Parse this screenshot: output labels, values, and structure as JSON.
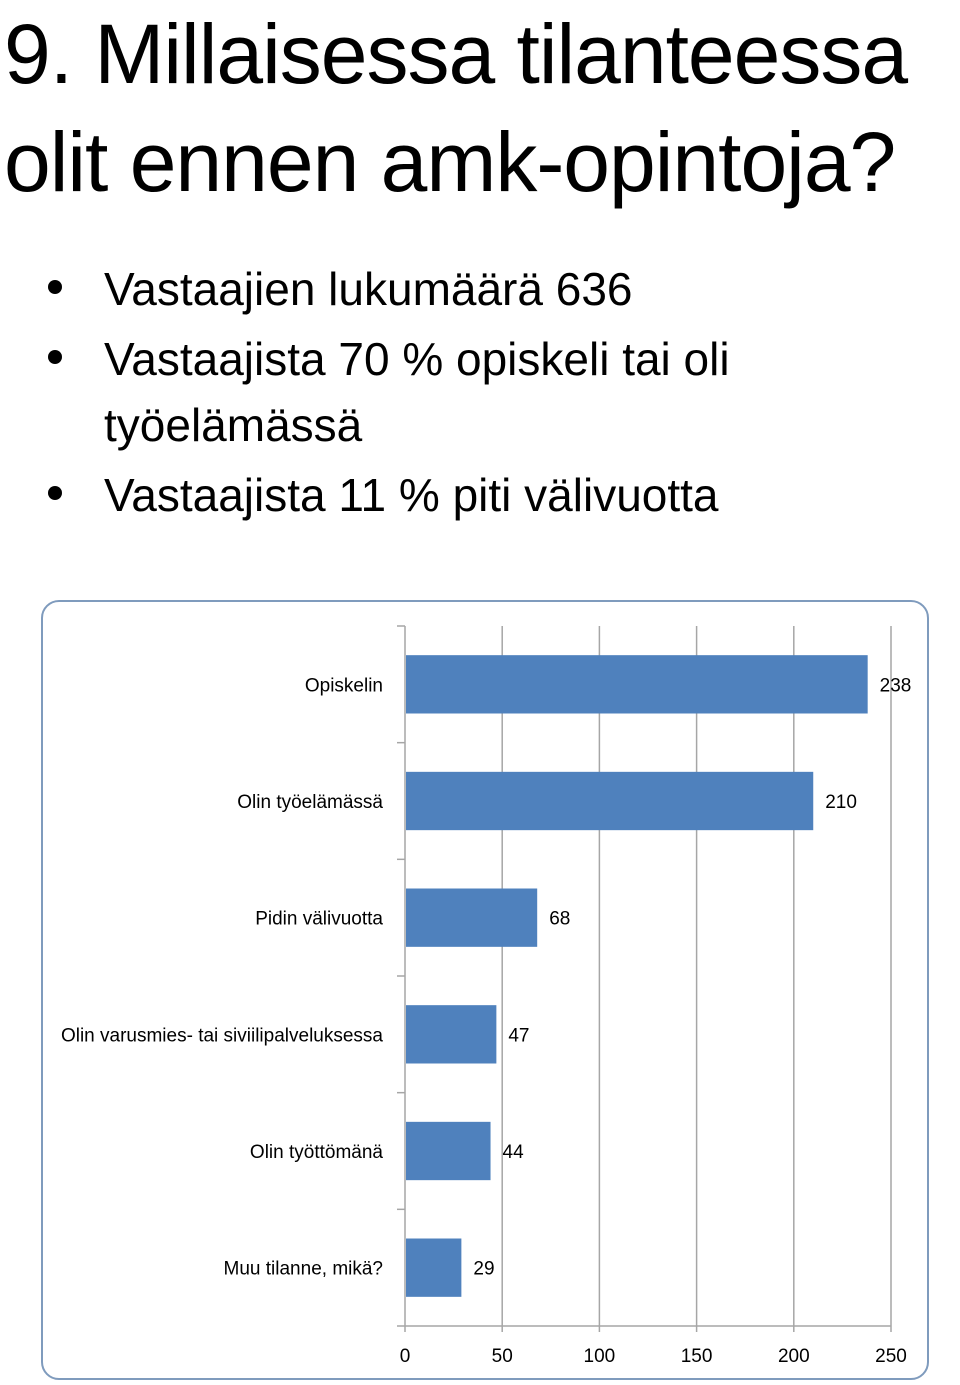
{
  "slide": {
    "title_line1": "9. Millaisessa tilanteessa",
    "title_line2": "olit ennen amk-opintoja?",
    "bullets": [
      "Vastaajien lukumäärä 636",
      "Vastaajista 70 % opiskeli tai oli työelämässä",
      "Vastaajista 11 % piti välivuotta"
    ]
  },
  "colors": {
    "bar": "#4f81bd",
    "grid": "#a6a6a6",
    "frame": "#7f9bbd"
  },
  "chart_data": {
    "type": "bar",
    "orientation": "horizontal",
    "categories": [
      "Opiskelin",
      "Olin työelämässä",
      "Pidin välivuotta",
      "Olin varusmies- tai siviilipalveluksessa",
      "Olin työttömänä",
      "Muu tilanne, mikä?"
    ],
    "values": [
      238,
      210,
      68,
      47,
      44,
      29
    ],
    "xlim": [
      0,
      250
    ],
    "xticks": [
      0,
      50,
      100,
      150,
      200,
      250
    ],
    "grid": true,
    "legend": "none",
    "data_labels": true
  }
}
